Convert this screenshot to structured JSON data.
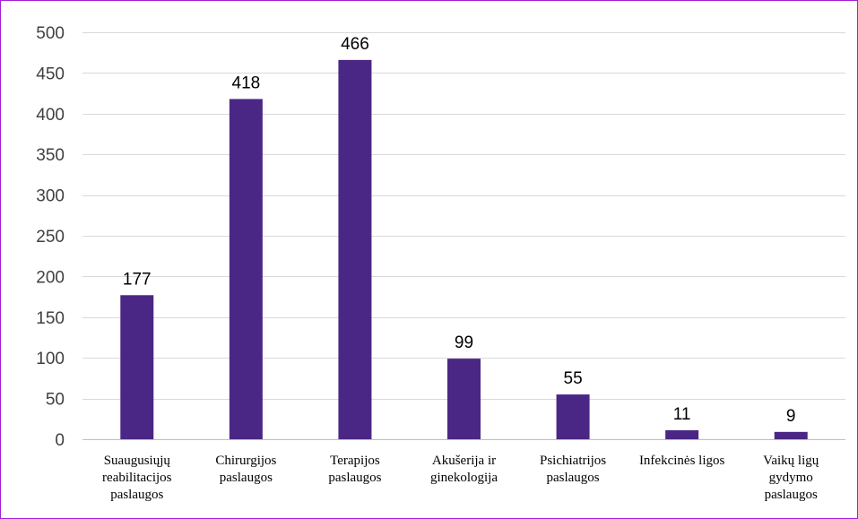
{
  "chart_data": {
    "type": "bar",
    "categories": [
      [
        "Suaugusiųjų",
        "reabilitacijos",
        "paslaugos"
      ],
      [
        "Chirurgijos",
        "paslaugos"
      ],
      [
        "Terapijos",
        "paslaugos"
      ],
      [
        "Akušerija ir",
        "ginekologija"
      ],
      [
        "Psichiatrijos",
        "paslaugos"
      ],
      [
        "Infekcinės ligos"
      ],
      [
        "Vaikų ligų",
        "gydymo",
        "paslaugos"
      ]
    ],
    "values": [
      177,
      418,
      466,
      99,
      55,
      11,
      9
    ],
    "ylim": [
      0,
      500
    ],
    "yticks": [
      0,
      50,
      100,
      150,
      200,
      250,
      300,
      350,
      400,
      450,
      500
    ],
    "grid": true,
    "bar_color": "#4b2785",
    "frame_color": "#a21fd6"
  }
}
